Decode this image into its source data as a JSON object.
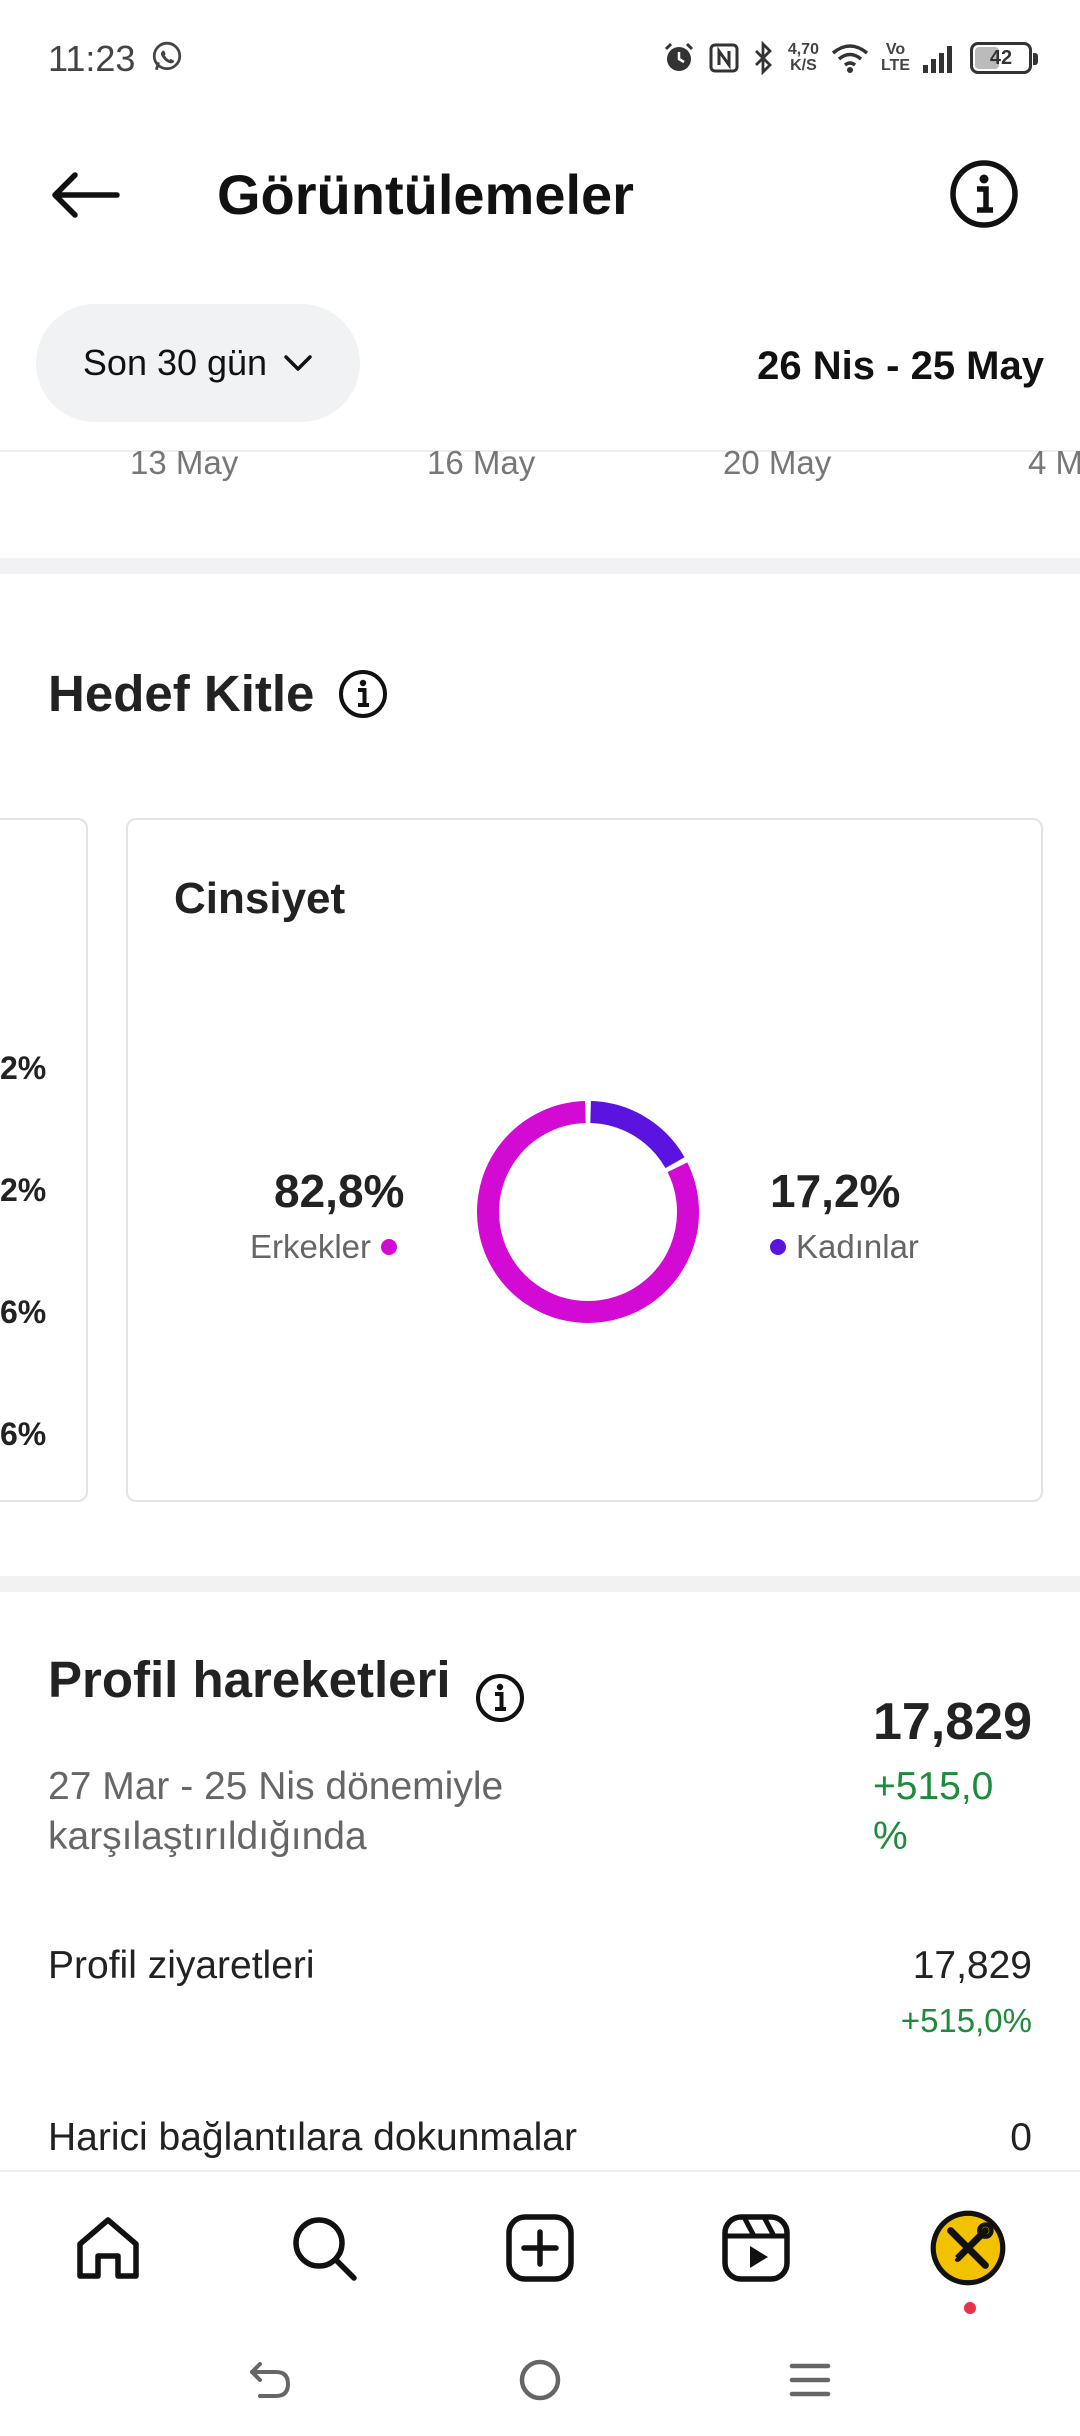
{
  "status_bar": {
    "time": "11:23",
    "net_speed_value": "4,70",
    "net_speed_unit": "K/S",
    "volte_top": "Vo",
    "volte_bottom": "LTE",
    "battery": "42"
  },
  "header": {
    "title": "Görüntülemeler"
  },
  "filter": {
    "period": "Son 30 gün",
    "date_range": "26 Nis - 25 May"
  },
  "timeline_axis": [
    "13 May",
    "16 May",
    "20 May",
    "4 M"
  ],
  "audience": {
    "title": "Hedef Kitle",
    "prev_card_fragments": [
      "2%",
      "2%",
      "6%",
      "6%"
    ],
    "gender_card": {
      "title": "Cinsiyet",
      "men_pct": "82,8%",
      "men_label": "Erkekler",
      "women_pct": "17,2%",
      "women_label": "Kadınlar"
    }
  },
  "chart_data": {
    "type": "pie",
    "title": "Cinsiyet",
    "categories": [
      "Erkekler",
      "Kadınlar"
    ],
    "values": [
      82.8,
      17.2
    ],
    "colors": [
      "#d20ad3",
      "#5b14e0"
    ]
  },
  "profile_activity": {
    "title": "Profil hareketleri",
    "comparison": "27 Mar - 25 Nis dönemiyle karşılaştırıldığında",
    "total": "17,829",
    "total_delta": "+515,0 %",
    "rows": [
      {
        "label": "Profil ziyaretleri",
        "value": "17,829",
        "delta": "+515,0%"
      },
      {
        "label": "Harici bağlantılara dokunmalar",
        "value": "0"
      }
    ]
  },
  "bottom_nav": {
    "items": [
      "home-icon",
      "search-icon",
      "create-icon",
      "reels-icon",
      "profile-avatar"
    ]
  },
  "colors": {
    "men": "#d20ad3",
    "women": "#5b14e0",
    "positive": "#1e8a3c",
    "notification_dot": "#e8324a"
  }
}
